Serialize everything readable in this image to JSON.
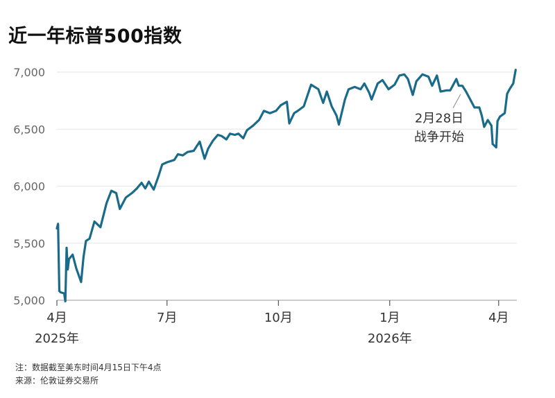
{
  "title": "近一年标普500指数",
  "notes": {
    "note": "注：数据截至美东时间4月15日下午4点",
    "source": "来源：伦敦证券交易所"
  },
  "colors": {
    "line": "#1a6b8a",
    "grid": "#e6e6e6",
    "axis": "#999999"
  },
  "chart_data": {
    "type": "line",
    "title": "近一年标普500指数",
    "ylim": [
      5000,
      7000
    ],
    "yticks": [
      5000,
      5500,
      6000,
      6500,
      7000
    ],
    "ytick_labels": [
      "5,000",
      "5,500",
      "6,000",
      "6,500",
      "7,000"
    ],
    "xlim": [
      "2025-04-01",
      "2026-04-16"
    ],
    "xticks": [
      {
        "date": "2025-04-01",
        "label": "4月",
        "year": "2025年"
      },
      {
        "date": "2025-07-01",
        "label": "7月",
        "year": ""
      },
      {
        "date": "2025-10-01",
        "label": "10月",
        "year": ""
      },
      {
        "date": "2026-01-01",
        "label": "1月",
        "year": "2026年"
      },
      {
        "date": "2026-04-01",
        "label": "4月",
        "year": ""
      }
    ],
    "grid": true,
    "annotation": {
      "date": "2026-02-28",
      "value": 6880,
      "line1": "2月28日",
      "line2": "战争开始"
    },
    "series": [
      {
        "x": [
          "2025-04-01",
          "2025-04-02",
          "2025-04-03",
          "2025-04-04",
          "2025-04-07",
          "2025-04-08",
          "2025-04-09",
          "2025-04-10",
          "2025-04-11",
          "2025-04-14",
          "2025-04-17",
          "2025-04-21",
          "2025-04-23",
          "2025-04-25",
          "2025-04-28",
          "2025-05-02",
          "2025-05-07",
          "2025-05-12",
          "2025-05-16",
          "2025-05-20",
          "2025-05-23",
          "2025-05-28",
          "2025-06-02",
          "2025-06-06",
          "2025-06-10",
          "2025-06-13",
          "2025-06-16",
          "2025-06-20",
          "2025-06-24",
          "2025-06-27",
          "2025-07-01",
          "2025-07-07",
          "2025-07-10",
          "2025-07-14",
          "2025-07-18",
          "2025-07-23",
          "2025-07-28",
          "2025-08-01",
          "2025-08-04",
          "2025-08-08",
          "2025-08-12",
          "2025-08-15",
          "2025-08-19",
          "2025-08-22",
          "2025-08-26",
          "2025-08-29",
          "2025-09-02",
          "2025-09-05",
          "2025-09-10",
          "2025-09-15",
          "2025-09-19",
          "2025-09-24",
          "2025-09-29",
          "2025-10-03",
          "2025-10-08",
          "2025-10-10",
          "2025-10-14",
          "2025-10-17",
          "2025-10-22",
          "2025-10-28",
          "2025-11-03",
          "2025-11-07",
          "2025-11-10",
          "2025-11-14",
          "2025-11-18",
          "2025-11-20",
          "2025-11-25",
          "2025-11-28",
          "2025-12-03",
          "2025-12-08",
          "2025-12-11",
          "2025-12-15",
          "2025-12-17",
          "2025-12-22",
          "2025-12-26",
          "2025-12-31",
          "2026-01-05",
          "2026-01-09",
          "2026-01-13",
          "2026-01-16",
          "2026-01-20",
          "2026-01-23",
          "2026-01-28",
          "2026-02-02",
          "2026-02-05",
          "2026-02-09",
          "2026-02-12",
          "2026-02-17",
          "2026-02-20",
          "2026-02-25",
          "2026-02-27",
          "2026-03-02",
          "2026-03-05",
          "2026-03-09",
          "2026-03-12",
          "2026-03-16",
          "2026-03-18",
          "2026-03-20",
          "2026-03-23",
          "2026-03-26",
          "2026-03-27",
          "2026-03-30",
          "2026-03-31",
          "2026-04-02",
          "2026-04-06",
          "2026-04-08",
          "2026-04-10",
          "2026-04-13",
          "2026-04-15"
        ],
        "values": [
          5630,
          5670,
          5080,
          5070,
          5060,
          4990,
          5460,
          5270,
          5360,
          5400,
          5280,
          5160,
          5380,
          5520,
          5540,
          5690,
          5640,
          5850,
          5960,
          5940,
          5800,
          5900,
          5940,
          5980,
          6030,
          5980,
          6040,
          5970,
          6090,
          6190,
          6210,
          6230,
          6280,
          6270,
          6300,
          6310,
          6390,
          6240,
          6330,
          6400,
          6450,
          6440,
          6410,
          6460,
          6450,
          6460,
          6420,
          6490,
          6530,
          6580,
          6660,
          6640,
          6660,
          6710,
          6740,
          6550,
          6640,
          6660,
          6700,
          6890,
          6850,
          6730,
          6830,
          6700,
          6620,
          6540,
          6760,
          6850,
          6870,
          6850,
          6900,
          6820,
          6760,
          6900,
          6930,
          6850,
          6890,
          6970,
          6980,
          6940,
          6800,
          6920,
          6980,
          6960,
          6880,
          6970,
          6830,
          6840,
          6840,
          6940,
          6880,
          6880,
          6830,
          6750,
          6690,
          6690,
          6620,
          6520,
          6580,
          6530,
          6370,
          6340,
          6570,
          6610,
          6640,
          6810,
          6850,
          6900,
          7020
        ]
      }
    ]
  }
}
